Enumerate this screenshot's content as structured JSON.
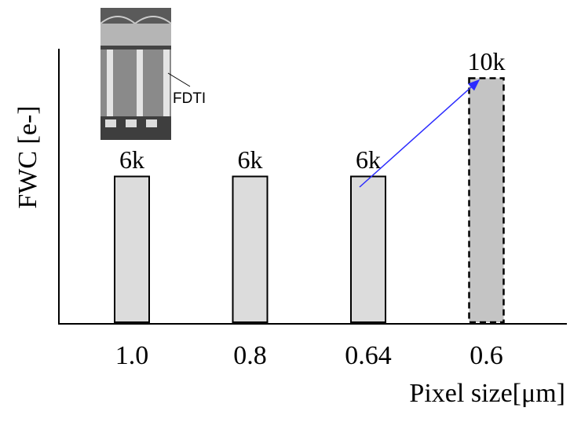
{
  "chart_data": {
    "type": "bar",
    "categories": [
      "1.0",
      "0.8",
      "0.64",
      "0.6"
    ],
    "values": [
      6000,
      6000,
      6000,
      10000
    ],
    "value_labels": [
      "6k",
      "6k",
      "6k",
      "10k"
    ],
    "colors": [
      "#dcdcdc",
      "#dcdcdc",
      "#dcdcdc",
      "#c4c4c4"
    ],
    "bar_styles": [
      "solid",
      "solid",
      "solid",
      "dashed"
    ],
    "ylim": [
      0,
      11200
    ],
    "y_label": "FWC [e-]",
    "x_label": "Pixel size[μm]",
    "annotation": "FDTI"
  }
}
